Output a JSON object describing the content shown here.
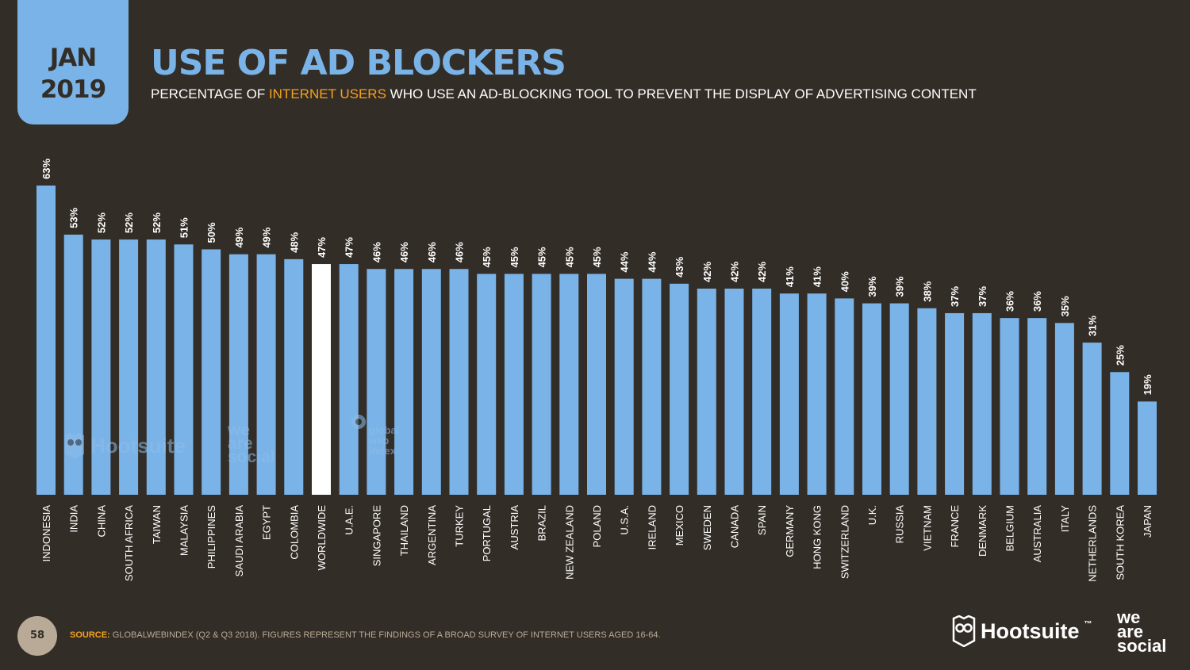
{
  "header": {
    "month": "JAN",
    "year": "2019",
    "title": "USE OF AD BLOCKERS",
    "subtitle_pre": "PERCENTAGE OF",
    "subtitle_highlight": "INTERNET USERS",
    "subtitle_post": "WHO USE AN AD-BLOCKING TOOL TO PREVENT THE DISPLAY OF ADVERTISING CONTENT"
  },
  "watermarks": {
    "hootsuite": "Hootsuite",
    "we": "we",
    "are": "are",
    "social": "social",
    "gwi_1": "global",
    "gwi_2": "web",
    "gwi_3": "index"
  },
  "footer": {
    "page_number": "58",
    "source_label": "SOURCE:",
    "source_text": "GLOBALWEBINDEX (Q2 & Q3 2018). FIGURES REPRESENT THE FINDINGS OF A BROAD SURVEY OF INTERNET USERS AGED 16-64.",
    "logo_hootsuite": "Hootsuite",
    "logo_tm": "™",
    "logo_we": "we",
    "logo_are": "are",
    "logo_social": "social"
  },
  "colors": {
    "background": "#332d27",
    "bar": "#7ab3e8",
    "highlight_bar": "#ffffff",
    "accent": "#f7a21d"
  },
  "chart_data": {
    "type": "bar",
    "title": "USE OF AD BLOCKERS",
    "xlabel": "",
    "ylabel": "",
    "ylim": [
      0,
      63
    ],
    "unit": "%",
    "highlight_category": "WORLDWIDE",
    "categories": [
      "INDONESIA",
      "INDIA",
      "CHINA",
      "SOUTH AFRICA",
      "TAIWAN",
      "MALAYSIA",
      "PHILIPPINES",
      "SAUDI ARABIA",
      "EGYPT",
      "COLOMBIA",
      "WORLDWIDE",
      "U.A.E.",
      "SINGAPORE",
      "THAILAND",
      "ARGENTINA",
      "TURKEY",
      "PORTUGAL",
      "AUSTRIA",
      "BRAZIL",
      "NEW ZEALAND",
      "POLAND",
      "U.S.A.",
      "IRELAND",
      "MEXICO",
      "SWEDEN",
      "CANADA",
      "SPAIN",
      "GERMANY",
      "HONG KONG",
      "SWITZERLAND",
      "U.K.",
      "RUSSIA",
      "VIETNAM",
      "FRANCE",
      "DENMARK",
      "BELGIUM",
      "AUSTRALIA",
      "ITALY",
      "NETHERLANDS",
      "SOUTH KOREA",
      "JAPAN"
    ],
    "values": [
      63,
      53,
      52,
      52,
      52,
      51,
      50,
      49,
      49,
      48,
      47,
      47,
      46,
      46,
      46,
      46,
      45,
      45,
      45,
      45,
      45,
      44,
      44,
      43,
      42,
      42,
      42,
      41,
      41,
      40,
      39,
      39,
      38,
      37,
      37,
      36,
      36,
      35,
      31,
      25,
      19
    ]
  }
}
